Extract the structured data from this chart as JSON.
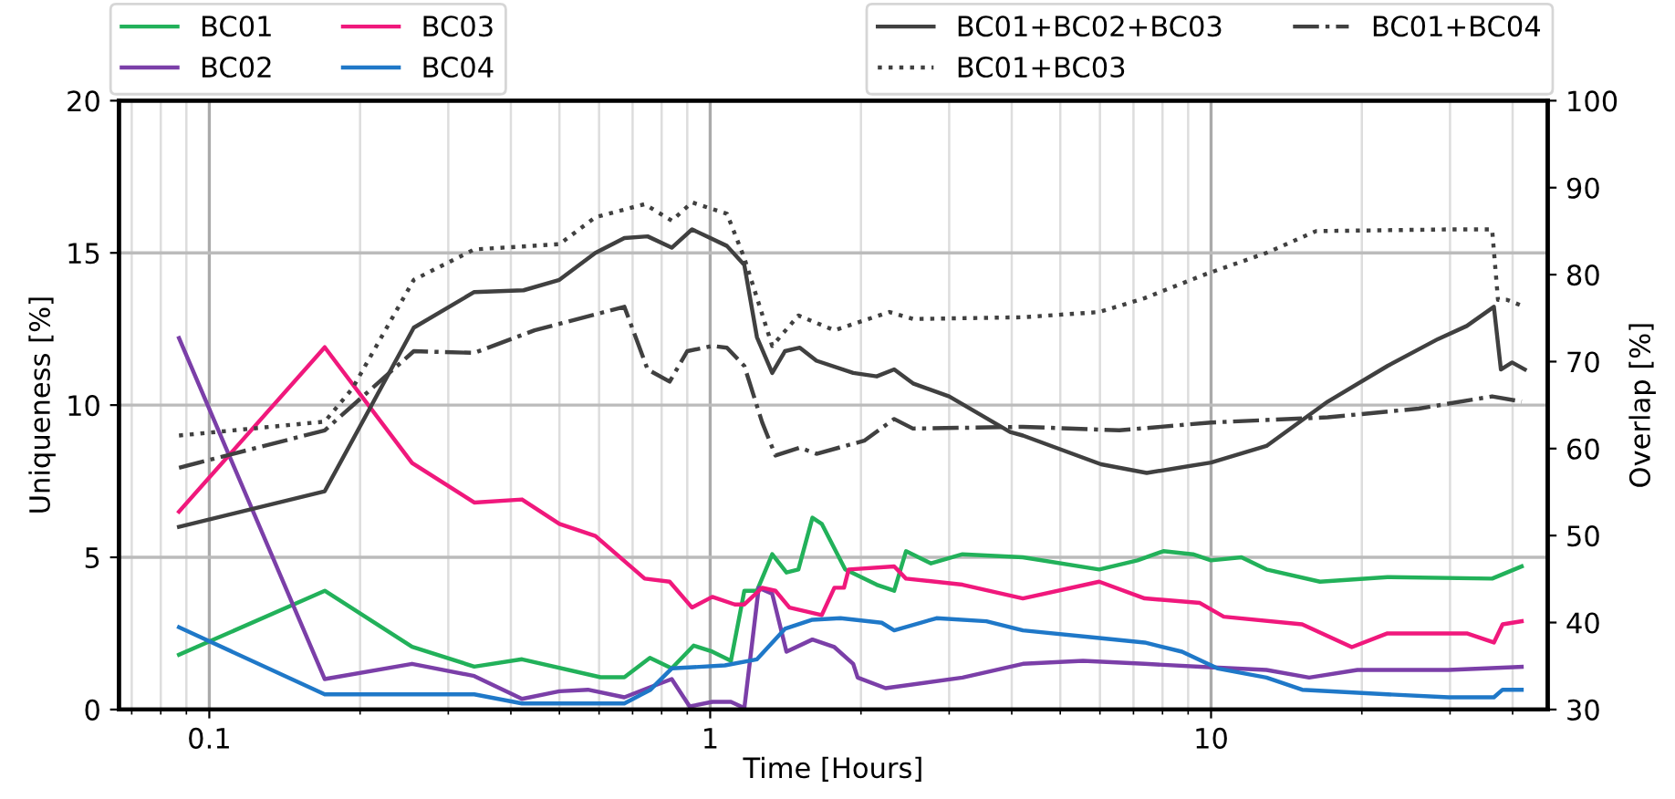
{
  "chart_data": {
    "type": "line",
    "xlabel": "Time [Hours]",
    "ylabel": "Uniqueness [%]",
    "y2label": "Overlap [%]",
    "log": "x",
    "grid": true,
    "legend": "top",
    "line_style": "solid",
    "marker": "none",
    "xlim": [
      0.066,
      47
    ],
    "xticks": [
      0.1,
      1,
      10
    ],
    "ylim": [
      0,
      20
    ],
    "yticks": [
      0,
      5,
      10,
      15,
      20
    ],
    "y2lim": [
      30,
      100
    ],
    "y2ticks": [
      30,
      40,
      50,
      60,
      70,
      80,
      90,
      100
    ],
    "series": [
      {
        "name": "BC01",
        "color": "#22b15a",
        "x": [
          0.087,
          0.17,
          0.254,
          0.338,
          0.421,
          0.604,
          0.674,
          0.758,
          0.838,
          0.927,
          1.01,
          1.1,
          1.17,
          1.24,
          1.33,
          1.42,
          1.5,
          1.6,
          1.67,
          1.86,
          2.15,
          2.33,
          2.46,
          2.76,
          3.19,
          4.21,
          5.98,
          7.13,
          8.03,
          9.2,
          10,
          11.5,
          12.9,
          16.5,
          22.5,
          36.4,
          41.7
        ],
        "values": [
          1.8,
          3.9,
          2.06,
          1.41,
          1.65,
          1.06,
          1.06,
          1.7,
          1.35,
          2.1,
          1.9,
          1.6,
          3.9,
          3.9,
          5.1,
          4.5,
          4.6,
          6.3,
          6.1,
          4.6,
          4.1,
          3.9,
          5.2,
          4.8,
          5.1,
          5.0,
          4.6,
          4.9,
          5.2,
          5.1,
          4.9,
          5.0,
          4.6,
          4.2,
          4.35,
          4.3,
          4.7
        ]
      },
      {
        "name": "BC02",
        "color": "#7b3fa8",
        "x": [
          0.087,
          0.17,
          0.254,
          0.338,
          0.421,
          0.5,
          0.57,
          0.674,
          0.75,
          0.838,
          0.91,
          1.01,
          1.1,
          1.17,
          1.25,
          1.33,
          1.42,
          1.6,
          1.77,
          1.93,
          1.97,
          2.24,
          3.19,
          4.21,
          5.55,
          7.37,
          9.7,
          12.9,
          15.7,
          19.6,
          29.8,
          41.7
        ],
        "values": [
          12.2,
          1.0,
          1.5,
          1.1,
          0.35,
          0.6,
          0.65,
          0.4,
          0.7,
          1.0,
          0.1,
          0.25,
          0.25,
          0.05,
          4.0,
          3.8,
          1.9,
          2.3,
          2.05,
          1.5,
          1.05,
          0.7,
          1.05,
          1.5,
          1.6,
          1.5,
          1.4,
          1.3,
          1.05,
          1.3,
          1.3,
          1.4
        ]
      },
      {
        "name": "BC03",
        "color": "#f0187c",
        "x": [
          0.087,
          0.17,
          0.254,
          0.338,
          0.421,
          0.5,
          0.59,
          0.74,
          0.83,
          0.92,
          1.01,
          1.12,
          1.17,
          1.27,
          1.35,
          1.44,
          1.67,
          1.77,
          1.85,
          1.89,
          2.33,
          2.46,
          3.19,
          4.21,
          5.98,
          7.37,
          9.5,
          10.6,
          15.2,
          19.1,
          22.5,
          32.4,
          36.7,
          38.2,
          41.7
        ],
        "values": [
          6.5,
          11.9,
          8.1,
          6.8,
          6.9,
          6.1,
          5.7,
          4.3,
          4.2,
          3.35,
          3.7,
          3.45,
          3.45,
          4.0,
          3.9,
          3.35,
          3.1,
          4.0,
          4.0,
          4.6,
          4.7,
          4.3,
          4.1,
          3.65,
          4.2,
          3.65,
          3.5,
          3.05,
          2.8,
          2.05,
          2.5,
          2.5,
          2.2,
          2.8,
          2.9
        ]
      },
      {
        "name": "BC04",
        "color": "#1f78c8",
        "x": [
          0.087,
          0.17,
          0.338,
          0.421,
          0.674,
          0.76,
          0.838,
          1.07,
          1.24,
          1.41,
          1.6,
          1.82,
          2.2,
          2.33,
          2.83,
          3.56,
          4.21,
          5.98,
          7.37,
          8.75,
          10.3,
          12.9,
          15.2,
          22.5,
          29.8,
          36.7,
          38.2,
          41.7
        ],
        "values": [
          2.7,
          0.5,
          0.5,
          0.2,
          0.2,
          0.65,
          1.35,
          1.45,
          1.65,
          2.65,
          2.95,
          3.0,
          2.85,
          2.6,
          3.0,
          2.9,
          2.6,
          2.35,
          2.2,
          1.9,
          1.35,
          1.05,
          0.65,
          0.5,
          0.4,
          0.4,
          0.65,
          0.65
        ]
      },
      {
        "name": "BC01+BC02+BC03",
        "color": "#404040",
        "axis": "y2",
        "line_style": "solid",
        "x": [
          0.087,
          0.17,
          0.256,
          0.338,
          0.424,
          0.5,
          0.59,
          0.674,
          0.75,
          0.838,
          0.92,
          1.08,
          1.17,
          1.24,
          1.33,
          1.41,
          1.51,
          1.63,
          1.93,
          2.15,
          2.33,
          2.54,
          3.0,
          3.97,
          4.21,
          6.03,
          7.44,
          10,
          12.9,
          17.1,
          22.5,
          28.4,
          32.4,
          36.7,
          37.9,
          39.9,
          42.3
        ],
        "values": [
          51.0,
          55.1,
          73.9,
          78.0,
          78.2,
          79.4,
          82.5,
          84.2,
          84.4,
          83.1,
          85.2,
          83.3,
          81.1,
          72.8,
          68.7,
          71.2,
          71.6,
          70.1,
          68.7,
          68.3,
          69.1,
          67.5,
          66.0,
          61.9,
          61.5,
          58.2,
          57.2,
          58.4,
          60.3,
          65.4,
          69.5,
          72.6,
          74.1,
          76.3,
          69.1,
          69.9,
          69.1
        ]
      },
      {
        "name": "BC01+BC03",
        "color": "#404040",
        "axis": "y2",
        "line_style": "dotted",
        "x": [
          0.087,
          0.17,
          0.193,
          0.256,
          0.338,
          0.5,
          0.59,
          0.74,
          0.838,
          0.92,
          1.08,
          1.17,
          1.33,
          1.5,
          1.77,
          2.28,
          2.54,
          4.21,
          5.98,
          7.37,
          9.7,
          12.9,
          16.2,
          29.8,
          36.4,
          37.4,
          39,
          42.3
        ],
        "values": [
          61.5,
          63.1,
          66.9,
          79.4,
          82.9,
          83.5,
          86.6,
          88.1,
          86.2,
          88.3,
          87.0,
          81.9,
          71.8,
          75.3,
          73.6,
          75.7,
          74.9,
          75.1,
          75.7,
          77.3,
          80.0,
          82.5,
          85.0,
          85.2,
          85.2,
          77.1,
          77.1,
          76.3
        ]
      },
      {
        "name": "BC01+BC04",
        "color": "#404040",
        "axis": "y2",
        "line_style": "dashdot",
        "x": [
          0.087,
          0.17,
          0.256,
          0.338,
          0.446,
          0.674,
          0.75,
          0.83,
          0.9,
          1.01,
          1.08,
          1.17,
          1.27,
          1.35,
          1.51,
          1.63,
          2.03,
          2.33,
          2.54,
          4.21,
          6.56,
          10,
          17.1,
          26,
          36.4,
          41.7
        ],
        "values": [
          57.8,
          62.1,
          71.2,
          71.0,
          73.6,
          76.3,
          69.1,
          67.7,
          71.2,
          71.8,
          71.6,
          69.5,
          63.0,
          59.2,
          60.1,
          59.4,
          60.9,
          63.4,
          62.3,
          62.5,
          62.1,
          63.0,
          63.6,
          64.6,
          66.0,
          65.4
        ]
      }
    ]
  }
}
